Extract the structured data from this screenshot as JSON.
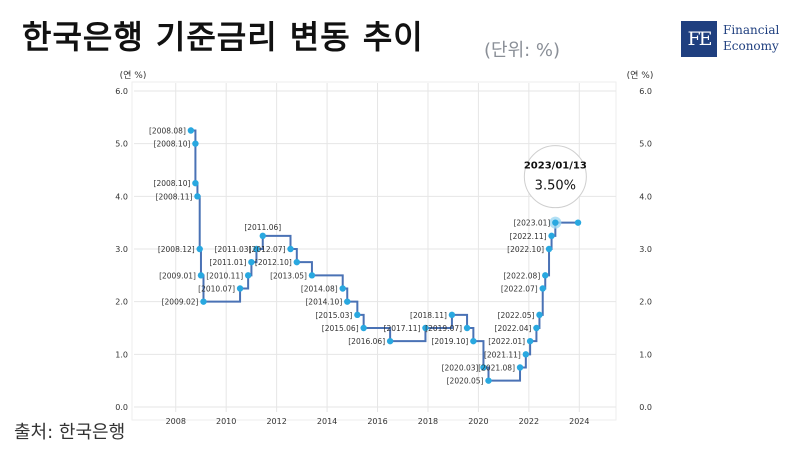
{
  "header": {
    "title": "한국은행 기준금리 변동 추이",
    "unit": "(단위: %)"
  },
  "logo": {
    "mark": "FE",
    "line1": "Financial",
    "line2": "Economy"
  },
  "footer": {
    "source": "출처: 한국은행"
  },
  "colors": {
    "line": "#4a72b5",
    "point": "#29a8e0",
    "grid": "#e6e6e6"
  },
  "chart_data": {
    "type": "line",
    "step": true,
    "ylabel_left": "(연 %)",
    "ylabel_right": "(연 %)",
    "ylim": [
      0.0,
      6.0
    ],
    "yticks": [
      "0.0",
      "1.0",
      "2.0",
      "3.0",
      "4.0",
      "5.0",
      "6.0"
    ],
    "xlim": [
      2006.9,
      2024.9
    ],
    "xticks": [
      "2008",
      "2010",
      "2012",
      "2014",
      "2016",
      "2018",
      "2020",
      "2022",
      "2024"
    ],
    "grid": true,
    "points": [
      {
        "x": 2008.6,
        "y": 5.25,
        "label": "[2008.08]",
        "side": "left"
      },
      {
        "x": 2008.78,
        "y": 5.0,
        "label": "[2008.10]",
        "side": "left"
      },
      {
        "x": 2008.78,
        "y": 4.25,
        "label": "[2008.10]",
        "side": "left"
      },
      {
        "x": 2008.86,
        "y": 4.0,
        "label": "[2008.11]",
        "side": "left"
      },
      {
        "x": 2008.95,
        "y": 3.0,
        "label": "[2008.12]",
        "side": "left"
      },
      {
        "x": 2009.0,
        "y": 2.5,
        "label": "[2009.01]",
        "side": "left"
      },
      {
        "x": 2009.1,
        "y": 2.0,
        "label": "[2009.02]",
        "side": "left"
      },
      {
        "x": 2010.55,
        "y": 2.25,
        "label": "[2010.07]",
        "side": "left"
      },
      {
        "x": 2010.87,
        "y": 2.5,
        "label": "[2010.11]",
        "side": "left"
      },
      {
        "x": 2011.0,
        "y": 2.75,
        "label": "[2011.01]",
        "side": "left"
      },
      {
        "x": 2011.2,
        "y": 3.0,
        "label": "[2011.03]",
        "side": "left"
      },
      {
        "x": 2011.45,
        "y": 3.25,
        "label": "[2011.06]",
        "side": "above"
      },
      {
        "x": 2012.55,
        "y": 3.0,
        "label": "[2012.07]",
        "side": "left"
      },
      {
        "x": 2012.8,
        "y": 2.75,
        "label": "[2012.10]",
        "side": "left"
      },
      {
        "x": 2013.4,
        "y": 2.5,
        "label": "[2013.05]",
        "side": "left"
      },
      {
        "x": 2014.62,
        "y": 2.25,
        "label": "[2014.08]",
        "side": "left"
      },
      {
        "x": 2014.8,
        "y": 2.0,
        "label": "[2014.10]",
        "side": "left"
      },
      {
        "x": 2015.2,
        "y": 1.75,
        "label": "[2015.03]",
        "side": "left"
      },
      {
        "x": 2015.45,
        "y": 1.5,
        "label": "[2015.06]",
        "side": "left"
      },
      {
        "x": 2016.5,
        "y": 1.25,
        "label": "[2016.06]",
        "side": "left"
      },
      {
        "x": 2017.9,
        "y": 1.5,
        "label": "[2017.11]",
        "side": "left"
      },
      {
        "x": 2018.95,
        "y": 1.75,
        "label": "[2018.11]",
        "side": "left"
      },
      {
        "x": 2019.55,
        "y": 1.5,
        "label": "[2019.07]",
        "side": "left"
      },
      {
        "x": 2019.8,
        "y": 1.25,
        "label": "[2019.10]",
        "side": "left"
      },
      {
        "x": 2020.2,
        "y": 0.75,
        "label": "[2020.03]",
        "side": "left"
      },
      {
        "x": 2020.4,
        "y": 0.5,
        "label": "[2020.05]",
        "side": "left"
      },
      {
        "x": 2021.65,
        "y": 0.75,
        "label": "[2021.08]",
        "side": "left"
      },
      {
        "x": 2021.88,
        "y": 1.0,
        "label": "[2021.11]",
        "side": "left"
      },
      {
        "x": 2022.05,
        "y": 1.25,
        "label": "[2022.01]",
        "side": "left"
      },
      {
        "x": 2022.3,
        "y": 1.5,
        "label": "[2022.04]",
        "side": "left"
      },
      {
        "x": 2022.42,
        "y": 1.75,
        "label": "[2022.05]",
        "side": "left"
      },
      {
        "x": 2022.55,
        "y": 2.25,
        "label": "[2022.07]",
        "side": "left"
      },
      {
        "x": 2022.65,
        "y": 2.5,
        "label": "[2022.08]",
        "side": "left"
      },
      {
        "x": 2022.8,
        "y": 3.0,
        "label": "[2022.10]",
        "side": "left"
      },
      {
        "x": 2022.9,
        "y": 3.25,
        "label": "[2022.11]",
        "side": "left"
      },
      {
        "x": 2023.05,
        "y": 3.5,
        "label": "[2023.01]",
        "side": "left"
      },
      {
        "x": 2023.95,
        "y": 3.5,
        "label": "",
        "side": "none"
      }
    ],
    "callout": {
      "date": "2023/01/13",
      "value": "3.50%"
    }
  }
}
